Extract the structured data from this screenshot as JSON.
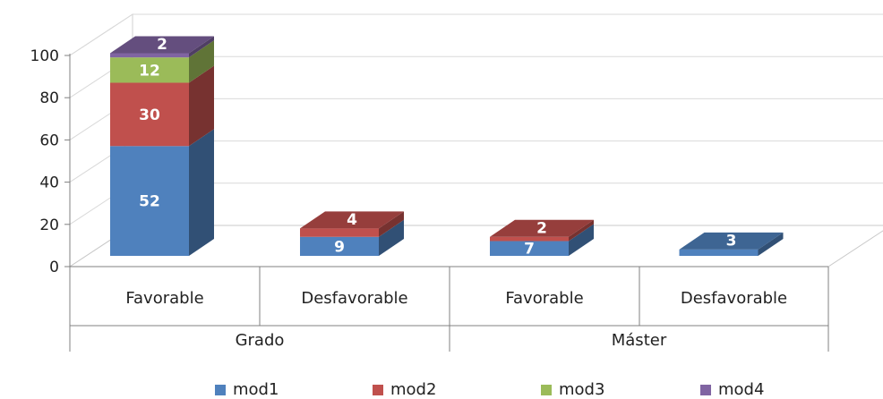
{
  "chart_data": {
    "type": "bar",
    "stacked": true,
    "three_d": true,
    "categories": [
      "Favorable",
      "Desfavorable",
      "Favorable",
      "Desfavorable"
    ],
    "groups": [
      {
        "label": "Grado",
        "categories": [
          "Favorable",
          "Desfavorable"
        ]
      },
      {
        "label": "Máster",
        "categories": [
          "Favorable",
          "Desfavorable"
        ]
      }
    ],
    "series": [
      {
        "name": "mod1",
        "color": "#4f81bd",
        "values": [
          52,
          9,
          7,
          3
        ]
      },
      {
        "name": "mod2",
        "color": "#c0504d",
        "values": [
          30,
          4,
          2,
          0
        ]
      },
      {
        "name": "mod3",
        "color": "#9bbb59",
        "values": [
          12,
          0,
          0,
          0
        ]
      },
      {
        "name": "mod4",
        "color": "#8064a2",
        "values": [
          2,
          0,
          0,
          0
        ]
      }
    ],
    "ylim": [
      0,
      100
    ],
    "yticks": [
      0,
      20,
      40,
      60,
      80,
      100
    ],
    "grid": true,
    "legend": "bottom",
    "title": "",
    "xlabel": "",
    "ylabel": ""
  }
}
